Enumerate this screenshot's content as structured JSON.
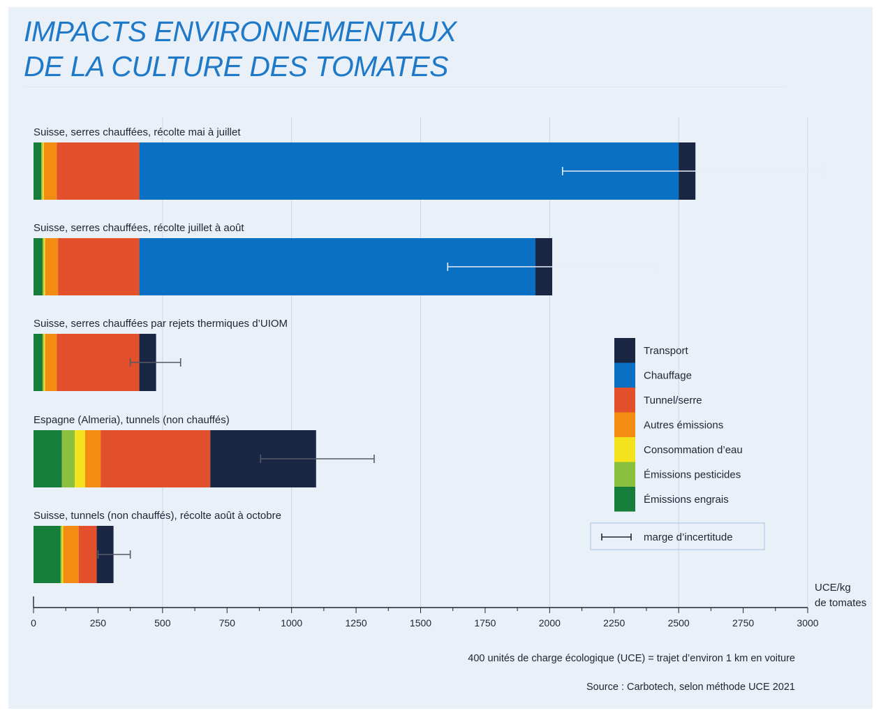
{
  "title": {
    "line1": "IMPACTS ENVIRONNEMENTAUX",
    "line2": "DE LA CULTURE DES TOMATES"
  },
  "footnote": "400 unités de charge écologique (UCE) = trajet d’environ 1 km en voiture",
  "source": "Source : Carbotech, selon méthode UCE 2021",
  "chart_data": {
    "type": "bar",
    "orientation": "horizontal",
    "stacked": true,
    "xlabel": "UCE/kg de tomates",
    "xlabel_lines": [
      "UCE/kg",
      "de tomates"
    ],
    "xlim": [
      0,
      3000
    ],
    "xticks": [
      0,
      250,
      500,
      750,
      1000,
      1250,
      1500,
      1750,
      2000,
      2250,
      2500,
      2750,
      3000
    ],
    "grid": "vertical major lines every 500",
    "legend_placement": "right",
    "categories": [
      "Suisse, serres chauffées, récolte mai à juillet",
      "Suisse, serres chauffées, récolte juillet à août",
      "Suisse, serres chauffées par rejets thermiques d’UIOM",
      "Espagne (Almeria), tunnels (non chauffés)",
      "Suisse, tunnels (non chauffés), récolte août à octobre"
    ],
    "series": [
      {
        "name": "Émissions engrais",
        "color": "#167d3a",
        "values": [
          30,
          35,
          35,
          110,
          105
        ]
      },
      {
        "name": "Émissions pesticides",
        "color": "#8cc03f",
        "values": [
          5,
          5,
          5,
          50,
          5
        ]
      },
      {
        "name": "Consommation d’eau",
        "color": "#f4e21c",
        "values": [
          5,
          5,
          5,
          40,
          5
        ]
      },
      {
        "name": "Autres émissions",
        "color": "#f28c12",
        "values": [
          50,
          50,
          45,
          60,
          60
        ]
      },
      {
        "name": "Tunnel/serre",
        "color": "#e2512b",
        "values": [
          320,
          315,
          320,
          425,
          70
        ]
      },
      {
        "name": "Chauffage",
        "color": "#0a70c4",
        "values": [
          2090,
          1535,
          0,
          0,
          0
        ]
      },
      {
        "name": "Transport",
        "color": "#1a2744",
        "values": [
          65,
          65,
          65,
          410,
          65
        ]
      }
    ],
    "uncertainty": {
      "name": "marge d’incertitude",
      "intervals": [
        [
          2050,
          3070
        ],
        [
          1605,
          2410
        ],
        [
          375,
          570
        ],
        [
          880,
          1320
        ],
        [
          250,
          375
        ]
      ]
    },
    "legend_order": [
      "Transport",
      "Chauffage",
      "Tunnel/serre",
      "Autres émissions",
      "Consommation d’eau",
      "Émissions pesticides",
      "Émissions engrais"
    ]
  }
}
